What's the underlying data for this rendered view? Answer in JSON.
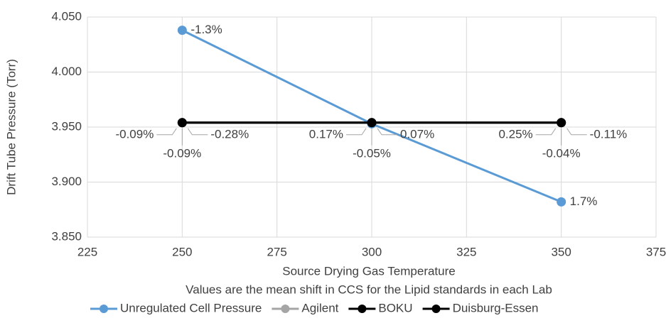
{
  "chart_data": {
    "type": "line",
    "x_label": "Source Drying Gas Temperature",
    "y_label": "Drift  Tube Pressure (Torr)",
    "note": "Values are the mean shift in CCS for the Lipid standards in each Lab",
    "xlim": [
      225,
      375
    ],
    "xticks": [
      225,
      250,
      275,
      300,
      325,
      350,
      375
    ],
    "ylim": [
      3.85,
      4.05
    ],
    "yticks": [
      {
        "value": 3.85,
        "label": "3.850"
      },
      {
        "value": 3.9,
        "label": "3.900"
      },
      {
        "value": 3.95,
        "label": "3.950"
      },
      {
        "value": 4.0,
        "label": "4.000"
      },
      {
        "value": 4.05,
        "label": "4.050"
      }
    ],
    "grid": true,
    "x": [
      250,
      300,
      350
    ],
    "series": [
      {
        "name": "Unregulated Cell Pressure",
        "color": "#5b9bd5",
        "values": [
          4.038,
          3.953,
          3.882
        ],
        "ccs_shift_labels": [
          "-1.3%",
          null,
          "1.7%"
        ]
      },
      {
        "name": "Agilent",
        "color": "#a5a5a5",
        "values": [
          3.954,
          3.954,
          3.954
        ],
        "ccs_shift_labels": [
          "-0.09%",
          "0.17%",
          "0.25%"
        ]
      },
      {
        "name": "BOKU",
        "color": "#000000",
        "values": [
          3.954,
          3.954,
          3.954
        ],
        "ccs_shift_labels": [
          "-0.09%",
          "-0.05%",
          "-0.04%"
        ]
      },
      {
        "name": "Duisburg-Essen",
        "color": "#000000",
        "values": [
          3.954,
          3.954,
          3.954
        ],
        "ccs_shift_labels": [
          "-0.28%",
          "0.07%",
          "-0.11%"
        ]
      }
    ]
  }
}
